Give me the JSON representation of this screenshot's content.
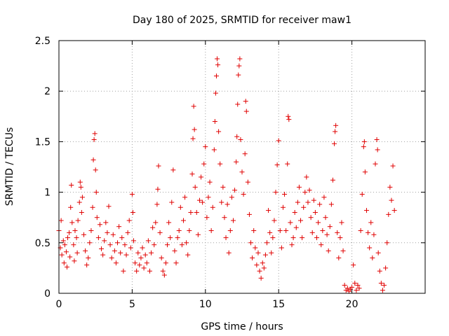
{
  "chart_data": {
    "type": "scatter",
    "title": "Day 180 of 2025, SRMTID for receiver maw1",
    "xlabel": "GPS time / hours",
    "ylabel": "SRMTID / TECUs",
    "xlim": [
      0,
      25
    ],
    "ylim": [
      0,
      2.5
    ],
    "xticks": [
      0,
      5,
      10,
      15,
      20
    ],
    "xtick_labels": [
      "0",
      "5",
      "10",
      "15",
      "20"
    ],
    "yticks": [
      0,
      0.5,
      1,
      1.5,
      2,
      2.5
    ],
    "ytick_labels": [
      "0",
      "0.5",
      "1",
      "1.5",
      "2",
      "2.5"
    ],
    "grid": true,
    "marker": "+",
    "color": "#e00000",
    "series": [
      {
        "name": "maw1",
        "points": [
          [
            0.0,
            0.62
          ],
          [
            0.1,
            0.45
          ],
          [
            0.15,
            0.72
          ],
          [
            0.2,
            0.38
          ],
          [
            0.3,
            0.52
          ],
          [
            0.35,
            0.3
          ],
          [
            0.4,
            0.48
          ],
          [
            0.5,
            0.41
          ],
          [
            0.55,
            0.26
          ],
          [
            0.6,
            0.55
          ],
          [
            0.7,
            0.6
          ],
          [
            0.75,
            0.36
          ],
          [
            0.8,
            0.85
          ],
          [
            0.85,
            1.07
          ],
          [
            0.9,
            0.7
          ],
          [
            1.0,
            0.48
          ],
          [
            1.05,
            0.32
          ],
          [
            1.1,
            0.62
          ],
          [
            1.2,
            0.55
          ],
          [
            1.25,
            0.4
          ],
          [
            1.3,
            0.72
          ],
          [
            1.4,
            0.9
          ],
          [
            1.45,
            1.1
          ],
          [
            1.5,
            1.05
          ],
          [
            1.55,
            0.8
          ],
          [
            1.6,
            0.95
          ],
          [
            1.7,
            0.58
          ],
          [
            1.8,
            0.42
          ],
          [
            1.9,
            0.28
          ],
          [
            2.0,
            0.35
          ],
          [
            2.1,
            0.5
          ],
          [
            2.2,
            0.62
          ],
          [
            2.3,
            0.85
          ],
          [
            2.35,
            1.32
          ],
          [
            2.4,
            1.52
          ],
          [
            2.45,
            1.58
          ],
          [
            2.5,
            1.22
          ],
          [
            2.55,
            1.0
          ],
          [
            2.6,
            0.75
          ],
          [
            2.7,
            0.55
          ],
          [
            2.8,
            0.68
          ],
          [
            2.9,
            0.44
          ],
          [
            3.0,
            0.38
          ],
          [
            3.1,
            0.52
          ],
          [
            3.2,
            0.7
          ],
          [
            3.3,
            0.6
          ],
          [
            3.4,
            0.86
          ],
          [
            3.5,
            0.48
          ],
          [
            3.6,
            0.35
          ],
          [
            3.7,
            0.58
          ],
          [
            3.8,
            0.42
          ],
          [
            3.9,
            0.3
          ],
          [
            4.0,
            0.5
          ],
          [
            4.1,
            0.66
          ],
          [
            4.2,
            0.4
          ],
          [
            4.3,
            0.55
          ],
          [
            4.4,
            0.22
          ],
          [
            4.5,
            0.48
          ],
          [
            4.6,
            0.38
          ],
          [
            4.7,
            0.6
          ],
          [
            4.8,
            0.72
          ],
          [
            4.9,
            0.45
          ],
          [
            5.0,
            0.98
          ],
          [
            5.05,
            0.8
          ],
          [
            5.1,
            0.52
          ],
          [
            5.2,
            0.3
          ],
          [
            5.3,
            0.22
          ],
          [
            5.4,
            0.4
          ],
          [
            5.5,
            0.28
          ],
          [
            5.6,
            0.35
          ],
          [
            5.7,
            0.45
          ],
          [
            5.8,
            0.25
          ],
          [
            5.9,
            0.38
          ],
          [
            6.0,
            0.3
          ],
          [
            6.1,
            0.52
          ],
          [
            6.2,
            0.22
          ],
          [
            6.3,
            0.4
          ],
          [
            6.4,
            0.65
          ],
          [
            6.5,
            0.48
          ],
          [
            6.6,
            0.7
          ],
          [
            6.7,
            0.88
          ],
          [
            6.75,
            1.03
          ],
          [
            6.8,
            1.26
          ],
          [
            6.9,
            0.6
          ],
          [
            7.0,
            0.35
          ],
          [
            7.1,
            0.22
          ],
          [
            7.2,
            0.18
          ],
          [
            7.3,
            0.3
          ],
          [
            7.4,
            0.48
          ],
          [
            7.5,
            0.7
          ],
          [
            7.6,
            0.55
          ],
          [
            7.7,
            0.9
          ],
          [
            7.8,
            1.22
          ],
          [
            7.9,
            0.42
          ],
          [
            8.0,
            0.3
          ],
          [
            8.1,
            0.55
          ],
          [
            8.2,
            0.62
          ],
          [
            8.3,
            0.85
          ],
          [
            8.4,
            0.48
          ],
          [
            8.5,
            0.72
          ],
          [
            8.6,
            0.95
          ],
          [
            8.7,
            0.5
          ],
          [
            8.8,
            0.38
          ],
          [
            8.9,
            0.62
          ],
          [
            9.0,
            0.8
          ],
          [
            9.1,
            1.18
          ],
          [
            9.15,
            1.53
          ],
          [
            9.2,
            1.85
          ],
          [
            9.25,
            1.62
          ],
          [
            9.3,
            1.05
          ],
          [
            9.4,
            0.8
          ],
          [
            9.5,
            0.58
          ],
          [
            9.6,
            0.92
          ],
          [
            9.7,
            1.15
          ],
          [
            9.8,
            0.9
          ],
          [
            9.9,
            1.28
          ],
          [
            10.0,
            1.45
          ],
          [
            10.1,
            0.75
          ],
          [
            10.2,
            0.95
          ],
          [
            10.3,
            1.1
          ],
          [
            10.4,
            0.62
          ],
          [
            10.5,
            0.85
          ],
          [
            10.6,
            1.42
          ],
          [
            10.65,
            1.7
          ],
          [
            10.7,
            1.98
          ],
          [
            10.75,
            2.15
          ],
          [
            10.8,
            2.32
          ],
          [
            10.85,
            2.26
          ],
          [
            10.9,
            1.6
          ],
          [
            11.0,
            1.28
          ],
          [
            11.1,
            0.9
          ],
          [
            11.2,
            1.05
          ],
          [
            11.3,
            0.75
          ],
          [
            11.4,
            0.55
          ],
          [
            11.5,
            0.88
          ],
          [
            11.6,
            0.4
          ],
          [
            11.7,
            0.62
          ],
          [
            11.8,
            0.95
          ],
          [
            11.9,
            0.72
          ],
          [
            12.0,
            1.02
          ],
          [
            12.1,
            1.3
          ],
          [
            12.15,
            1.55
          ],
          [
            12.2,
            1.87
          ],
          [
            12.25,
            2.16
          ],
          [
            12.3,
            2.25
          ],
          [
            12.35,
            2.32
          ],
          [
            12.4,
            1.52
          ],
          [
            12.5,
            1.2
          ],
          [
            12.6,
            0.98
          ],
          [
            12.7,
            1.38
          ],
          [
            12.75,
            1.9
          ],
          [
            12.8,
            1.8
          ],
          [
            12.9,
            1.1
          ],
          [
            13.0,
            0.78
          ],
          [
            13.1,
            0.5
          ],
          [
            13.2,
            0.35
          ],
          [
            13.3,
            0.62
          ],
          [
            13.4,
            0.45
          ],
          [
            13.5,
            0.28
          ],
          [
            13.6,
            0.4
          ],
          [
            13.7,
            0.22
          ],
          [
            13.8,
            0.15
          ],
          [
            13.9,
            0.3
          ],
          [
            14.0,
            0.25
          ],
          [
            14.1,
            0.38
          ],
          [
            14.2,
            0.5
          ],
          [
            14.3,
            0.82
          ],
          [
            14.4,
            0.6
          ],
          [
            14.5,
            0.4
          ],
          [
            14.6,
            0.55
          ],
          [
            14.7,
            0.72
          ],
          [
            14.8,
            1.0
          ],
          [
            14.9,
            1.27
          ],
          [
            15.0,
            1.51
          ],
          [
            15.1,
            0.62
          ],
          [
            15.2,
            0.45
          ],
          [
            15.3,
            0.85
          ],
          [
            15.4,
            0.98
          ],
          [
            15.5,
            0.62
          ],
          [
            15.6,
            1.28
          ],
          [
            15.65,
            1.75
          ],
          [
            15.7,
            1.72
          ],
          [
            15.8,
            0.7
          ],
          [
            15.9,
            0.48
          ],
          [
            16.0,
            0.55
          ],
          [
            16.1,
            0.8
          ],
          [
            16.2,
            0.65
          ],
          [
            16.3,
            0.9
          ],
          [
            16.4,
            1.05
          ],
          [
            16.5,
            0.72
          ],
          [
            16.6,
            0.55
          ],
          [
            16.7,
            0.85
          ],
          [
            16.8,
            1.0
          ],
          [
            16.9,
            1.15
          ],
          [
            17.0,
            0.9
          ],
          [
            17.1,
            1.02
          ],
          [
            17.2,
            0.75
          ],
          [
            17.3,
            0.6
          ],
          [
            17.4,
            0.92
          ],
          [
            17.5,
            0.8
          ],
          [
            17.6,
            0.55
          ],
          [
            17.7,
            0.7
          ],
          [
            17.8,
            0.88
          ],
          [
            17.9,
            0.48
          ],
          [
            18.0,
            0.62
          ],
          [
            18.1,
            0.95
          ],
          [
            18.2,
            0.75
          ],
          [
            18.3,
            0.58
          ],
          [
            18.4,
            0.42
          ],
          [
            18.5,
            0.66
          ],
          [
            18.6,
            0.88
          ],
          [
            18.7,
            1.12
          ],
          [
            18.8,
            1.48
          ],
          [
            18.85,
            1.6
          ],
          [
            18.9,
            1.66
          ],
          [
            19.0,
            0.6
          ],
          [
            19.1,
            0.35
          ],
          [
            19.2,
            0.55
          ],
          [
            19.3,
            0.7
          ],
          [
            19.4,
            0.42
          ],
          [
            19.5,
            0.08
          ],
          [
            19.6,
            0.03
          ],
          [
            19.7,
            0.05
          ],
          [
            19.8,
            0.02
          ],
          [
            19.9,
            0.04
          ],
          [
            20.0,
            0.06
          ],
          [
            20.1,
            0.28
          ],
          [
            20.2,
            0.1
          ],
          [
            20.3,
            0.03
          ],
          [
            20.4,
            0.08
          ],
          [
            20.5,
            0.05
          ],
          [
            20.6,
            0.62
          ],
          [
            20.7,
            0.98
          ],
          [
            20.8,
            1.45
          ],
          [
            20.85,
            1.5
          ],
          [
            20.9,
            1.2
          ],
          [
            21.0,
            0.82
          ],
          [
            21.1,
            0.6
          ],
          [
            21.2,
            0.45
          ],
          [
            21.3,
            0.7
          ],
          [
            21.4,
            0.35
          ],
          [
            21.5,
            0.58
          ],
          [
            21.6,
            1.28
          ],
          [
            21.7,
            1.52
          ],
          [
            21.75,
            1.42
          ],
          [
            21.8,
            0.4
          ],
          [
            21.9,
            0.22
          ],
          [
            22.0,
            0.1
          ],
          [
            22.1,
            0.03
          ],
          [
            22.2,
            0.08
          ],
          [
            22.3,
            0.25
          ],
          [
            22.4,
            0.5
          ],
          [
            22.5,
            0.78
          ],
          [
            22.6,
            1.05
          ],
          [
            22.7,
            0.92
          ],
          [
            22.8,
            1.26
          ],
          [
            22.9,
            0.82
          ]
        ]
      }
    ]
  }
}
